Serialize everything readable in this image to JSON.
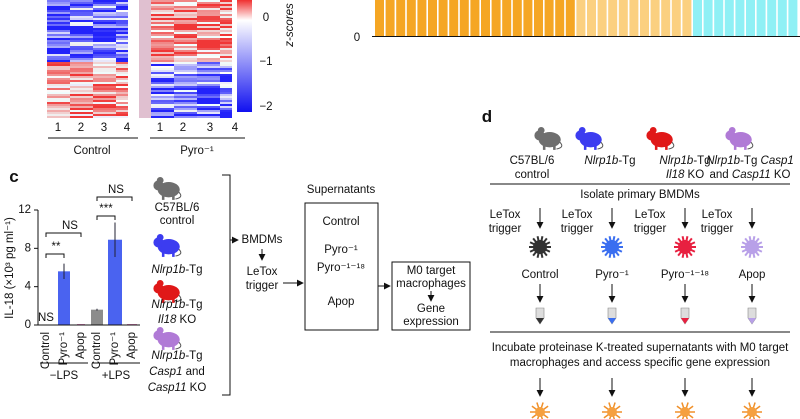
{
  "heatmap": {
    "colorbar_ticks": [
      "0",
      "−1",
      "−2"
    ],
    "colorbar_label": "z-scores",
    "columns": [
      "1",
      "2",
      "3",
      "4",
      "1",
      "2",
      "3",
      "4"
    ],
    "groups": [
      "Control",
      "Pyro⁻¹"
    ]
  },
  "top_right_axis_label": "0",
  "panel_labels": [
    "c",
    "d"
  ],
  "chart_data": {
    "type": "bar",
    "y_label": "IL-18 (×10³ pg ml⁻¹)",
    "categories": [
      "Control",
      "Pyro⁻¹",
      "Apop",
      "Control",
      "Pyro⁻¹",
      "Apop"
    ],
    "groups": [
      "−LPS",
      "+LPS"
    ],
    "values": [
      0,
      5.6,
      0.1,
      1.6,
      8.9,
      0.1
    ],
    "errors": [
      0,
      0.8,
      0,
      0.1,
      1.8,
      0
    ],
    "colors": [
      "#8c8c8c",
      "#4a63f0",
      "#d97ab5",
      "#8c8c8c",
      "#4a63f0",
      "#d97ab5"
    ],
    "ylim": [
      0,
      12
    ],
    "yticks": [
      0,
      4,
      8,
      12
    ],
    "annotations": [
      "NS",
      "**",
      "NS",
      "***",
      "NS"
    ]
  },
  "panel_c_diagram": {
    "mice": [
      [
        "C57BL/6",
        "control"
      ],
      [
        "Nlrp1b-Tg"
      ],
      [
        "Nlrp1b-Tg",
        "Il18 KO"
      ],
      [
        "Nlrp1b-Tg",
        "Casp1 and",
        "Casp11 KO"
      ]
    ],
    "bmdms": "BMDMs",
    "trigger": [
      "LeTox",
      "trigger"
    ],
    "supernatants_title": "Supernatants",
    "supernatants": [
      "Control",
      "Pyro⁻¹",
      "Pyro⁻¹⁻¹⁸",
      "Apop"
    ],
    "target": [
      "M0 target",
      "macrophages"
    ],
    "readout": [
      "Gene",
      "expression"
    ]
  },
  "panel_d": {
    "mice": [
      [
        "C57BL/6",
        "control"
      ],
      [
        "Nlrp1b-Tg"
      ],
      [
        "Nlrp1b-Tg",
        "Il18 KO"
      ],
      [
        "Nlrp1b-Tg Casp1",
        "and Casp11 KO"
      ]
    ],
    "step1": "Isolate primary BMDMs",
    "trigger": [
      "LeTox",
      "trigger"
    ],
    "conditions": [
      "Control",
      "Pyro⁻¹",
      "Pyro⁻¹⁻¹⁸",
      "Apop"
    ],
    "step2": [
      "Incubate proteinase K-treated supernatants with M0 target",
      "macrophages and access specific gene expression"
    ]
  }
}
